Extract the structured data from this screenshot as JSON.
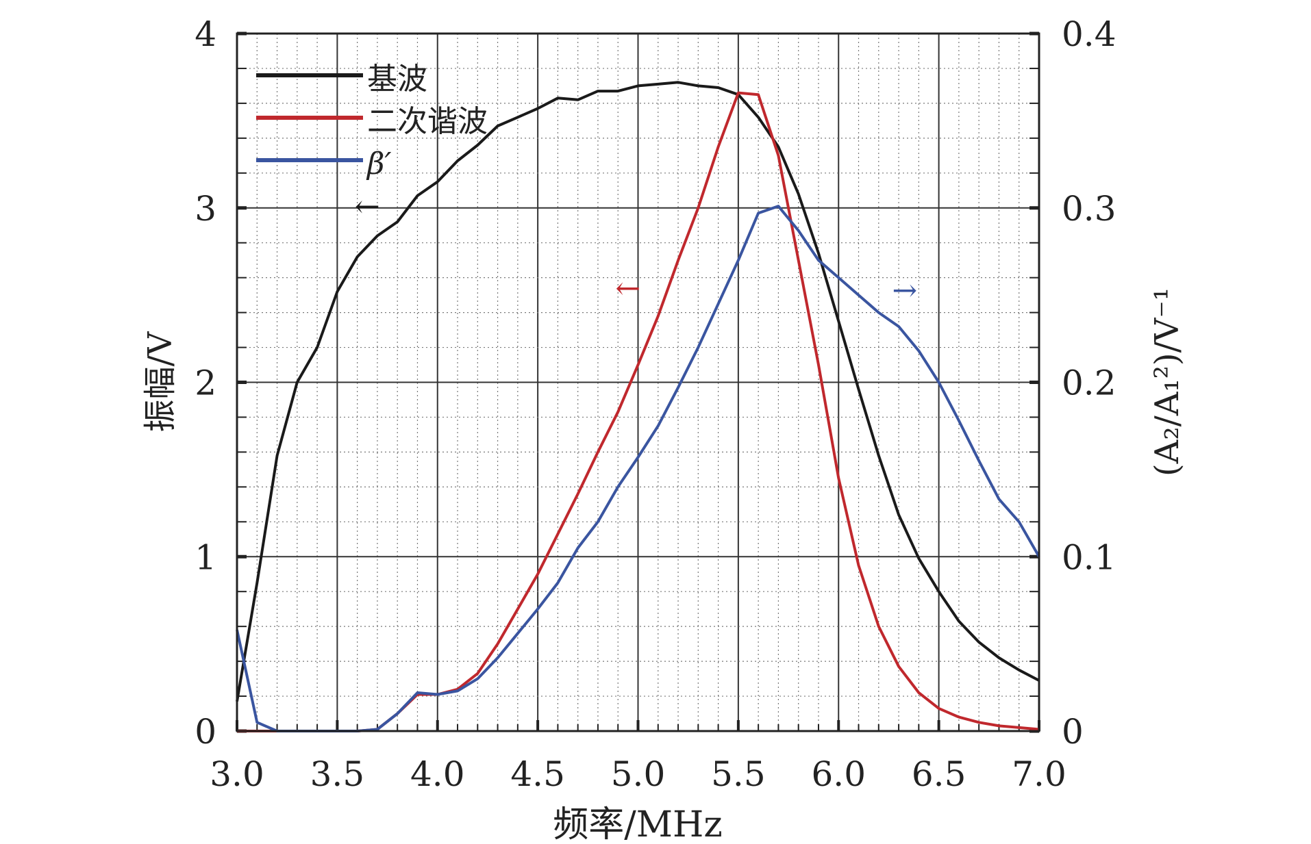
{
  "chart_data": {
    "type": "line",
    "title": "",
    "xlabel": "频率/MHz",
    "ylabel": "振幅/V",
    "y2label": "(A₂/A₁²)/V⁻¹",
    "xlim": [
      3.0,
      7.0
    ],
    "ylim": [
      0,
      4
    ],
    "y2lim": [
      0,
      0.4
    ],
    "xticks": [
      "3.0",
      "3.5",
      "4.0",
      "4.5",
      "5.0",
      "5.5",
      "6.0",
      "6.5",
      "7.0"
    ],
    "yticks": [
      "0",
      "1",
      "2",
      "3",
      "4"
    ],
    "y2ticks": [
      "0",
      "0.1",
      "0.2",
      "0.3",
      "0.4"
    ],
    "grid": true,
    "legend_position": "top-left",
    "x": [
      3.0,
      3.1,
      3.2,
      3.3,
      3.4,
      3.5,
      3.6,
      3.7,
      3.8,
      3.9,
      4.0,
      4.1,
      4.2,
      4.3,
      4.4,
      4.5,
      4.6,
      4.7,
      4.8,
      4.9,
      5.0,
      5.1,
      5.2,
      5.3,
      5.4,
      5.5,
      5.6,
      5.7,
      5.8,
      5.9,
      6.0,
      6.1,
      6.2,
      6.3,
      6.4,
      6.5,
      6.6,
      6.7,
      6.8,
      6.9,
      7.0
    ],
    "series": [
      {
        "name": "基波",
        "axis": "left",
        "color": "#1a1a1a",
        "values": [
          0.17,
          0.85,
          1.58,
          2.0,
          2.2,
          2.52,
          2.72,
          2.84,
          2.92,
          3.07,
          3.15,
          3.27,
          3.36,
          3.47,
          3.52,
          3.57,
          3.63,
          3.62,
          3.67,
          3.67,
          3.7,
          3.71,
          3.72,
          3.7,
          3.69,
          3.65,
          3.52,
          3.35,
          3.08,
          2.74,
          2.35,
          1.96,
          1.58,
          1.24,
          0.99,
          0.8,
          0.63,
          0.51,
          0.42,
          0.35,
          0.29
        ]
      },
      {
        "name": "二次谐波",
        "axis": "left",
        "color": "#c0282d",
        "values": [
          0,
          0,
          0,
          0,
          0,
          0,
          0,
          0.01,
          0.1,
          0.21,
          0.21,
          0.24,
          0.33,
          0.5,
          0.7,
          0.9,
          1.13,
          1.36,
          1.6,
          1.83,
          2.1,
          2.38,
          2.7,
          3.0,
          3.35,
          3.66,
          3.65,
          3.3,
          2.7,
          2.1,
          1.45,
          0.95,
          0.6,
          0.37,
          0.22,
          0.13,
          0.08,
          0.05,
          0.03,
          0.02,
          0.01
        ]
      },
      {
        "name": "β′",
        "axis": "right",
        "color": "#3a55a0",
        "values": [
          0.058,
          0.005,
          0,
          0,
          0,
          0,
          0,
          0.001,
          0.01,
          0.022,
          0.021,
          0.023,
          0.03,
          0.042,
          0.056,
          0.07,
          0.085,
          0.105,
          0.12,
          0.14,
          0.157,
          0.175,
          0.197,
          0.22,
          0.245,
          0.27,
          0.297,
          0.301,
          0.287,
          0.27,
          0.26,
          0.25,
          0.24,
          0.232,
          0.218,
          0.2,
          0.178,
          0.155,
          0.133,
          0.12,
          0.1
        ]
      }
    ],
    "annotations": [
      {
        "text": "←",
        "series": "基波",
        "x": 3.65,
        "y": 2.95
      },
      {
        "text": "←",
        "series": "二次谐波",
        "x": 4.95,
        "y": 2.48
      },
      {
        "text": "→",
        "series": "β′",
        "x": 6.33,
        "y": 2.47
      }
    ]
  }
}
